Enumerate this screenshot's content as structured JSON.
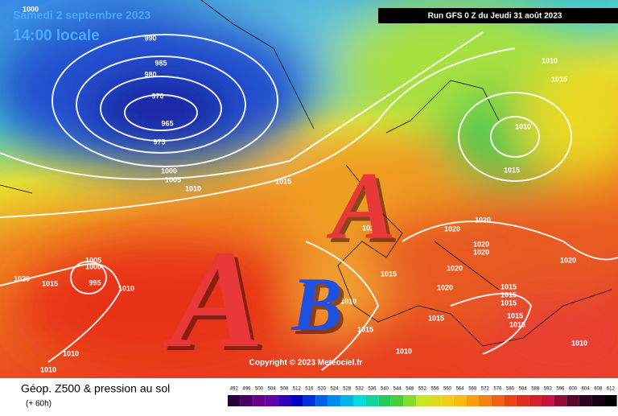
{
  "header": {
    "date": "Samedi 2 septembre 2023",
    "time": "14:00 locale",
    "run": "Run GFS 0 Z du Jeudi 31 août 2023"
  },
  "markers": [
    "A",
    "A",
    "B"
  ],
  "isobar_labels": [
    "1000",
    "990",
    "985",
    "980",
    "970",
    "965",
    "975",
    "1000",
    "1005",
    "1010",
    "1015",
    "1010",
    "1015",
    "1010",
    "1015",
    "1020",
    "1020",
    "1020",
    "1020",
    "1020",
    "1020",
    "1020",
    "1020",
    "1015",
    "1010",
    "1015",
    "1015",
    "1015",
    "1015",
    "1015",
    "1015",
    "1015",
    "1010",
    "1010",
    "1005",
    "1000",
    "995",
    "1020",
    "1015",
    "1010",
    "1010",
    "1010"
  ],
  "copyright": "Copyright © 2023 Meteociel.fr",
  "caption": {
    "title": "Géop. Z500 & pression au sol",
    "lead": "(+ 60h)"
  },
  "scale": [
    "492",
    "496",
    "500",
    "504",
    "508",
    "512",
    "516",
    "520",
    "524",
    "528",
    "532",
    "536",
    "540",
    "544",
    "548",
    "552",
    "556",
    "560",
    "564",
    "568",
    "572",
    "576",
    "580",
    "584",
    "588",
    "592",
    "596",
    "600",
    "604",
    "608",
    "612"
  ]
}
